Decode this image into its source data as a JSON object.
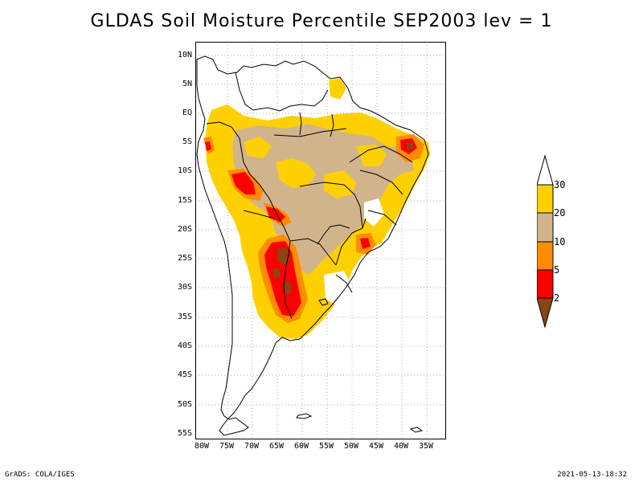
{
  "title": "GLDAS Soil Moisture Percentile SEP2003 lev = 1",
  "lat_labels": [
    "10N",
    "5N",
    "EQ",
    "5S",
    "10S",
    "15S",
    "20S",
    "25S",
    "30S",
    "35S",
    "40S",
    "45S",
    "50S",
    "55S"
  ],
  "lon_labels": [
    "80W",
    "75W",
    "70W",
    "65W",
    "60W",
    "55W",
    "50W",
    "45W",
    "40W",
    "35W"
  ],
  "colorbar": {
    "labels": [
      "30",
      "20",
      "10",
      "5",
      "2"
    ],
    "colors": {
      "above_30": "#ffffff",
      "20_30": "#ffd000",
      "10_20": "#d2b48c",
      "5_10": "#ff8c00",
      "2_5": "#ff0000",
      "below_2": "#8b4513"
    }
  },
  "footer": {
    "left": "GrADS: COLA/IGES",
    "right": "2021-05-13-18:32"
  }
}
